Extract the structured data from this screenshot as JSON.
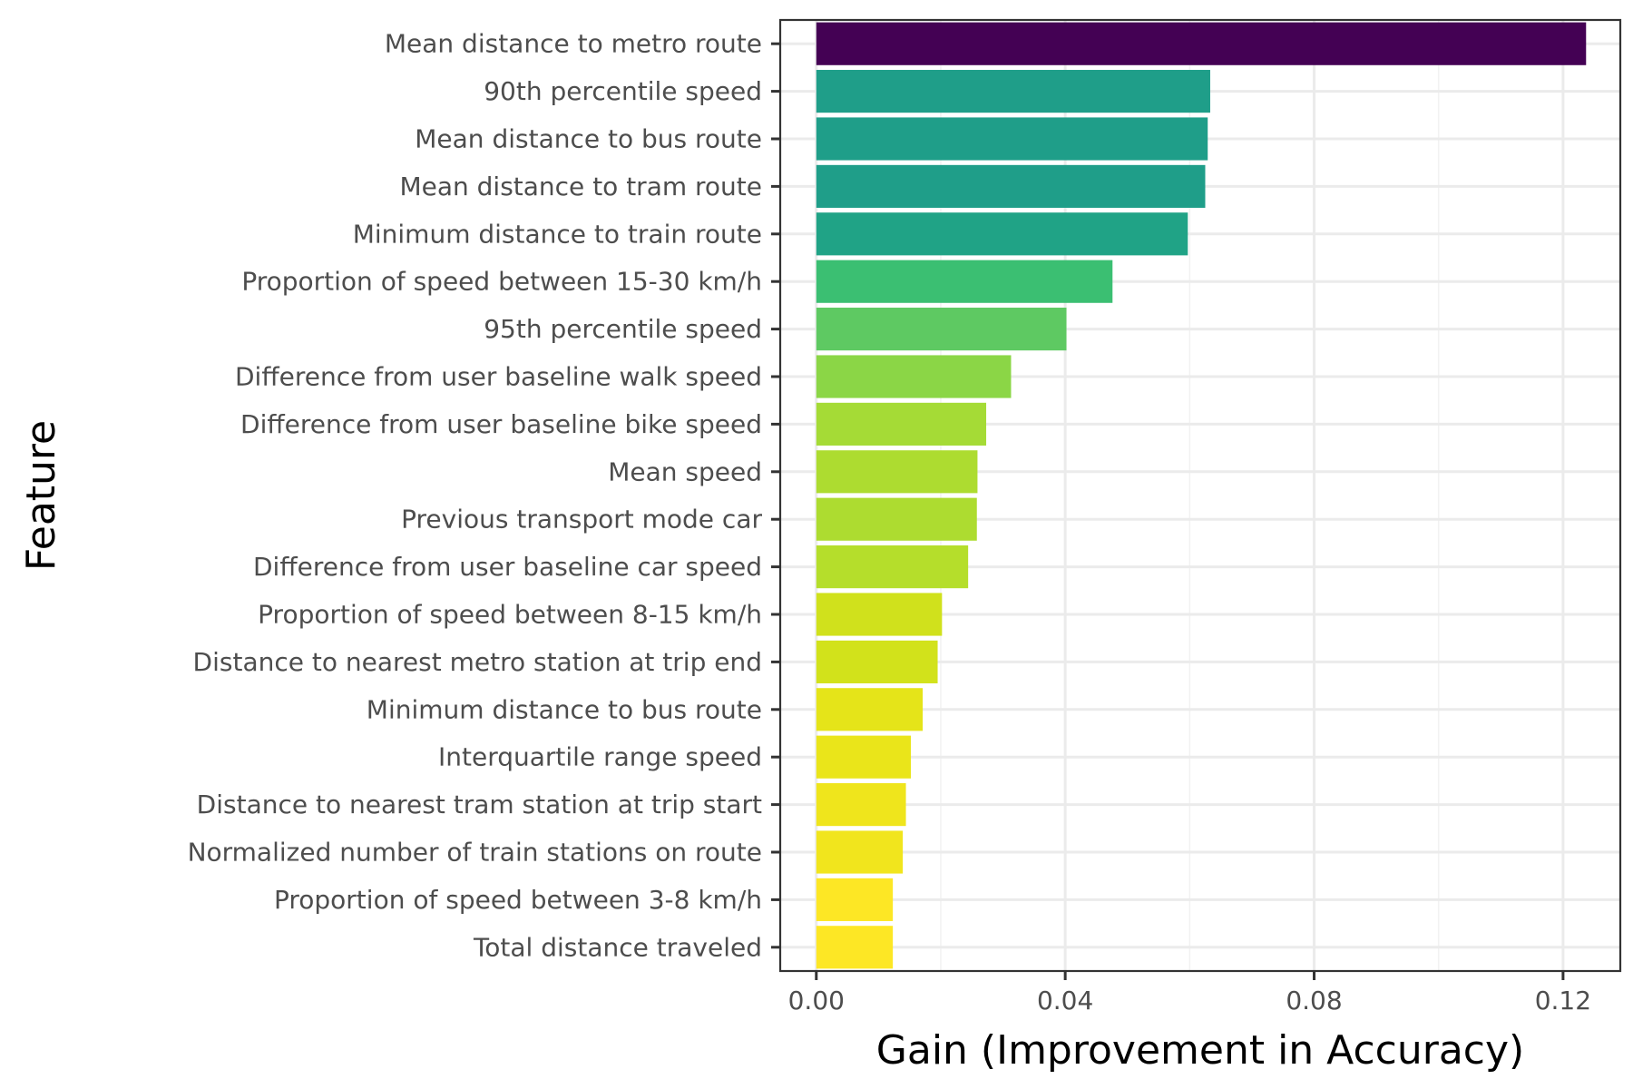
{
  "chart_data": {
    "type": "bar",
    "orientation": "horizontal",
    "xlabel": "Gain (Improvement in Accuracy)",
    "ylabel": "Feature",
    "xlim": [
      -0.0058,
      0.1292
    ],
    "x_ticks": [
      0.0,
      0.04,
      0.08,
      0.12
    ],
    "x_tick_labels": [
      "0.00",
      "0.04",
      "0.08",
      "0.12"
    ],
    "grid": true,
    "legend": "none",
    "categories": [
      "Mean distance to metro route",
      "90th percentile speed",
      "Mean distance to bus route",
      "Mean distance to tram route",
      "Minimum distance to train route",
      "Proportion of speed between 15-30 km/h",
      "95th percentile speed",
      "Difference from user baseline walk speed",
      "Difference from user baseline bike speed",
      "Mean speed",
      "Previous transport mode car",
      "Difference from user baseline car speed",
      "Proportion of speed between 8-15 km/h",
      "Distance to nearest metro station at trip end",
      "Minimum distance to bus route",
      "Interquartile range speed",
      "Distance to nearest tram station at trip start",
      "Normalized number of train stations on route",
      "Proportion of speed between 3-8 km/h",
      "Total distance traveled"
    ],
    "values": [
      0.1237,
      0.0633,
      0.0629,
      0.0625,
      0.0597,
      0.0476,
      0.0402,
      0.0313,
      0.0273,
      0.0259,
      0.0258,
      0.0244,
      0.0202,
      0.0195,
      0.0171,
      0.0152,
      0.0144,
      0.0139,
      0.0123,
      0.0123
    ],
    "colors": [
      "#440154",
      "#1f9e89",
      "#1f9e89",
      "#1f9e89",
      "#20a386",
      "#3bbf72",
      "#5ec962",
      "#8bd646",
      "#a5db36",
      "#addc30",
      "#addc30",
      "#b5de2b",
      "#d0e11c",
      "#d2e21b",
      "#e5e419",
      "#eae51a",
      "#efe51c",
      "#f1e51d",
      "#fde725",
      "#fde725"
    ]
  }
}
